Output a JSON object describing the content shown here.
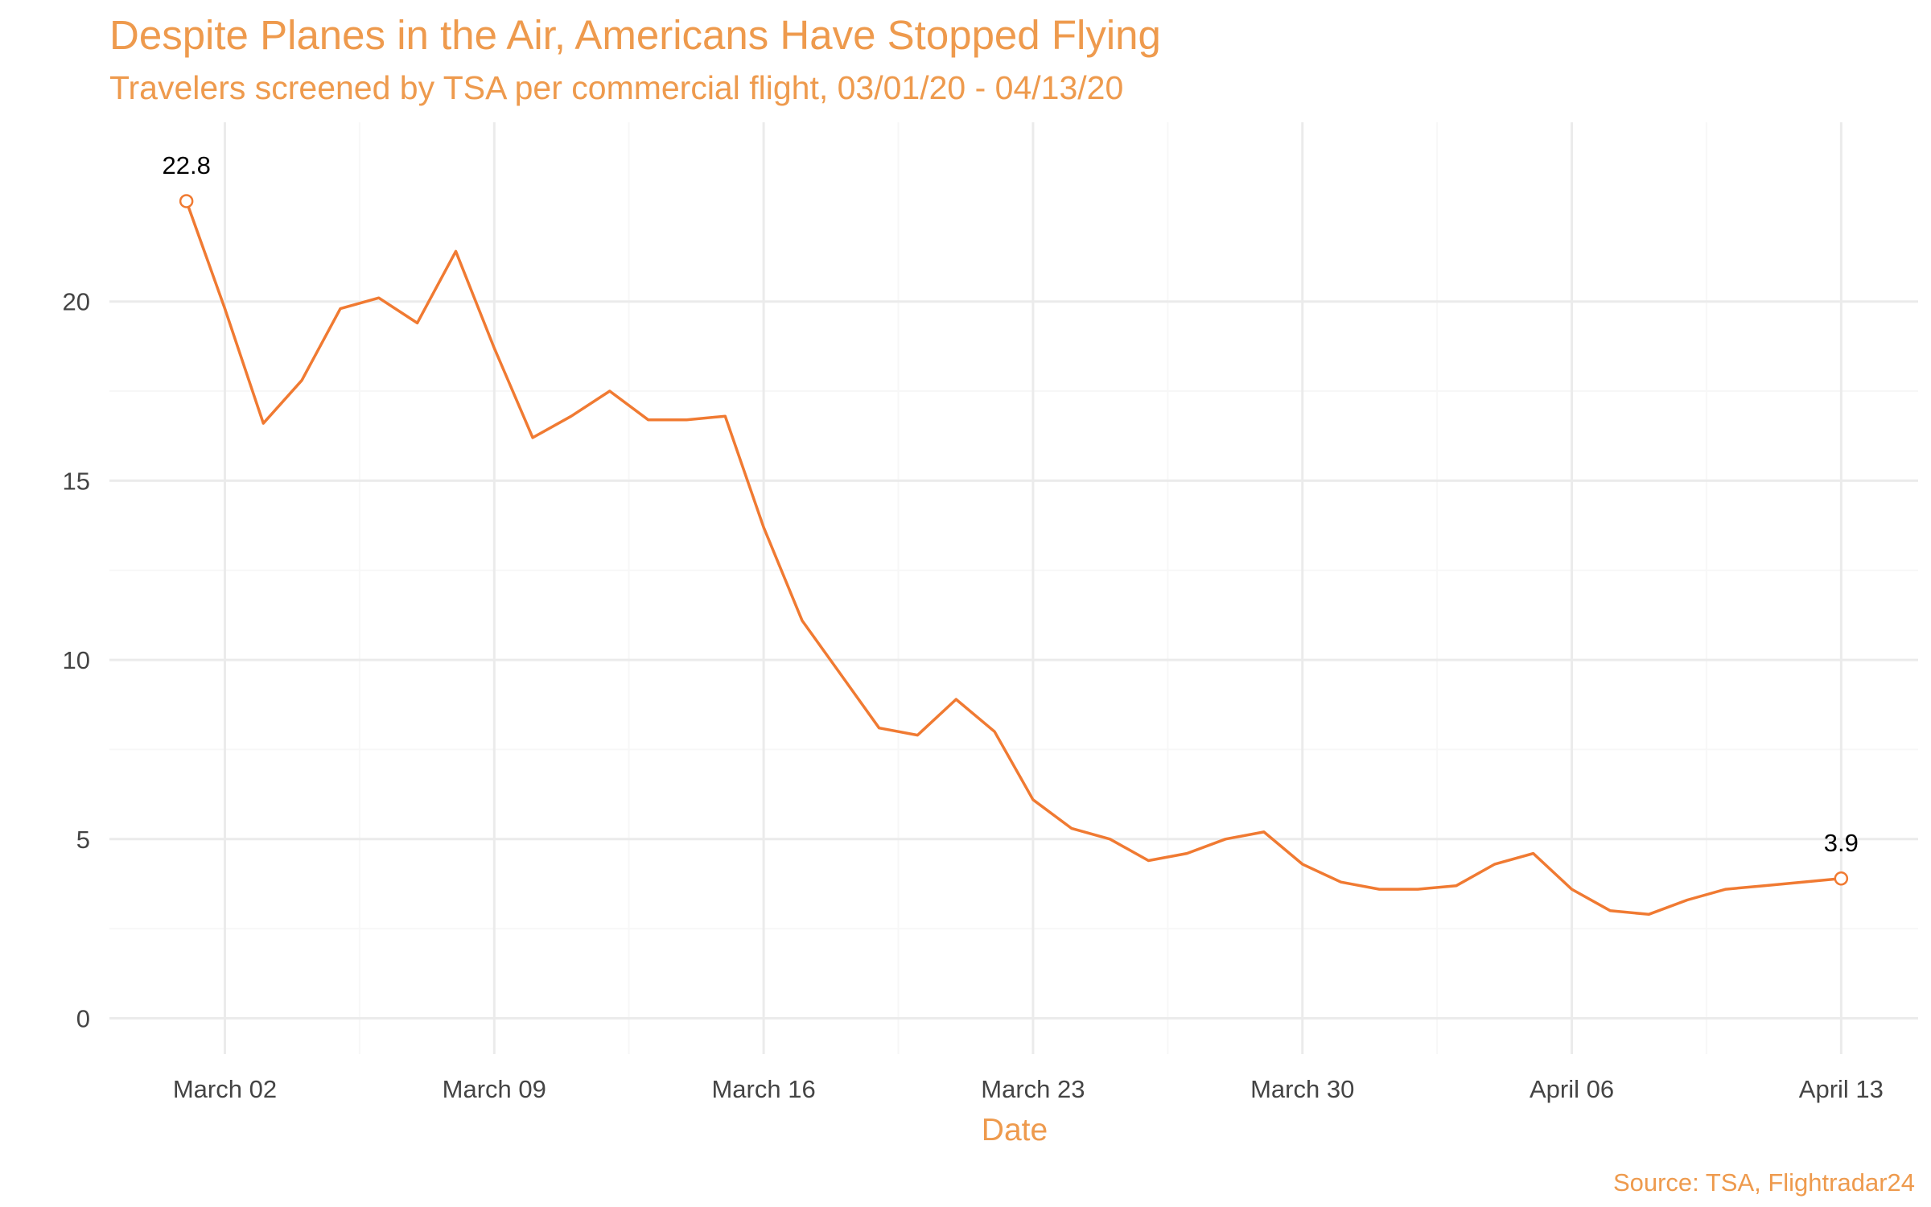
{
  "chart_data": {
    "type": "line",
    "title": "Despite Planes in the Air, Americans Have Stopped Flying",
    "subtitle": "Travelers screened by TSA per commercial flight, 03/01/20 - 04/13/20",
    "xlabel": "Date",
    "ylabel": "",
    "caption": "Source: TSA, Flightradar24",
    "x_type": "date",
    "x_tick_dates": [
      "2020-03-02",
      "2020-03-09",
      "2020-03-16",
      "2020-03-23",
      "2020-03-30",
      "2020-04-06",
      "2020-04-13"
    ],
    "x_tick_labels": [
      "March 02",
      "March 09",
      "March 16",
      "March 23",
      "March 30",
      "April 06",
      "April 13"
    ],
    "y_ticks": [
      0,
      5,
      10,
      15,
      20
    ],
    "xlim": [
      "2020-02-28",
      "2020-04-15"
    ],
    "ylim": [
      -1.0,
      25.0
    ],
    "grid": true,
    "line_color": "#F07A32",
    "series": [
      {
        "x": [
          "2020-03-01",
          "2020-03-02",
          "2020-03-03",
          "2020-03-04",
          "2020-03-05",
          "2020-03-06",
          "2020-03-07",
          "2020-03-08",
          "2020-03-09",
          "2020-03-10",
          "2020-03-11",
          "2020-03-12",
          "2020-03-13",
          "2020-03-14",
          "2020-03-15",
          "2020-03-16",
          "2020-03-17",
          "2020-03-18",
          "2020-03-19",
          "2020-03-20",
          "2020-03-21",
          "2020-03-22",
          "2020-03-23",
          "2020-03-24",
          "2020-03-25",
          "2020-03-26",
          "2020-03-27",
          "2020-03-28",
          "2020-03-29",
          "2020-03-30",
          "2020-03-31",
          "2020-04-01",
          "2020-04-02",
          "2020-04-03",
          "2020-04-04",
          "2020-04-05",
          "2020-04-06",
          "2020-04-07",
          "2020-04-08",
          "2020-04-09",
          "2020-04-10",
          "2020-04-11",
          "2020-04-12",
          "2020-04-13"
        ],
        "y": [
          22.8,
          19.8,
          16.6,
          17.8,
          19.8,
          20.1,
          19.4,
          21.4,
          18.7,
          16.2,
          16.8,
          17.5,
          16.7,
          16.7,
          16.8,
          13.7,
          11.1,
          9.6,
          8.1,
          7.9,
          8.9,
          8.0,
          6.1,
          5.3,
          5.0,
          4.4,
          4.6,
          5.0,
          5.2,
          4.3,
          3.8,
          3.6,
          3.6,
          3.7,
          4.3,
          4.6,
          3.6,
          3.0,
          2.9,
          3.3,
          3.6,
          3.7,
          3.8,
          3.9
        ]
      }
    ],
    "annotations": [
      {
        "x": "2020-03-01",
        "y": 22.8,
        "label": "22.8"
      },
      {
        "x": "2020-04-13",
        "y": 3.9,
        "label": "3.9"
      }
    ]
  }
}
